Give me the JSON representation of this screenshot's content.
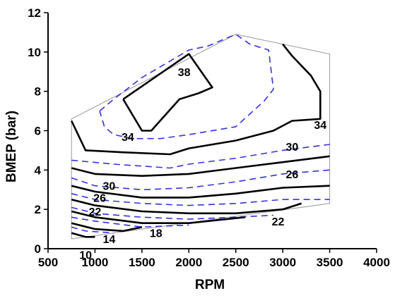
{
  "chart_data": {
    "type": "line",
    "subtype": "contour",
    "title": "",
    "xlabel": "RPM",
    "ylabel": "BMEP (bar)",
    "xlim": [
      500,
      4000
    ],
    "ylim": [
      0,
      12
    ],
    "xticks": [
      500,
      1000,
      1500,
      2000,
      2500,
      3000,
      3500,
      4000
    ],
    "yticks": [
      0,
      2,
      4,
      6,
      8,
      10,
      12
    ],
    "grid": false,
    "legend": "none",
    "colors": {
      "solid": "#000000",
      "dashed": "#3333dd",
      "boundary": "#999999"
    },
    "boundary": [
      [
        750,
        6.6
      ],
      [
        2500,
        10.9
      ],
      [
        3500,
        9.9
      ],
      [
        3500,
        2.3
      ],
      [
        750,
        0.5
      ],
      [
        750,
        6.6
      ]
    ],
    "contours": [
      {
        "label": "38",
        "style": "solid",
        "closed": true,
        "points": [
          [
            1300,
            7.6
          ],
          [
            2000,
            9.9
          ],
          [
            2250,
            8.2
          ],
          [
            2100,
            7.9
          ],
          [
            1900,
            7.6
          ],
          [
            1600,
            6.0
          ],
          [
            1500,
            6.0
          ],
          [
            1300,
            7.6
          ]
        ]
      },
      {
        "label": "",
        "style": "dashed",
        "closed": true,
        "points": [
          [
            1050,
            7.0
          ],
          [
            1200,
            7.6
          ],
          [
            1500,
            8.7
          ],
          [
            2000,
            10.1
          ],
          [
            2200,
            10.3
          ],
          [
            2500,
            10.9
          ],
          [
            2650,
            10.4
          ],
          [
            2850,
            10.1
          ],
          [
            2900,
            8.1
          ],
          [
            2800,
            7.5
          ],
          [
            2500,
            6.2
          ],
          [
            2000,
            5.8
          ],
          [
            1700,
            5.6
          ],
          [
            1400,
            5.6
          ],
          [
            1200,
            5.8
          ],
          [
            1100,
            6.2
          ],
          [
            1050,
            7.0
          ]
        ]
      },
      {
        "label": "34",
        "style": "solid",
        "closed": false,
        "points": [
          [
            750,
            6.5
          ],
          [
            900,
            5.0
          ],
          [
            1300,
            4.9
          ],
          [
            1800,
            4.8
          ],
          [
            2000,
            5.1
          ],
          [
            2500,
            5.5
          ],
          [
            2900,
            6.0
          ],
          [
            3100,
            6.5
          ],
          [
            3400,
            6.6
          ],
          [
            3400,
            7.6
          ],
          [
            3400,
            8.0
          ],
          [
            3300,
            8.8
          ],
          [
            3100,
            9.8
          ],
          [
            3000,
            10.4
          ]
        ]
      },
      {
        "label": "",
        "style": "dashed",
        "closed": false,
        "points": [
          [
            750,
            4.5
          ],
          [
            1200,
            4.3
          ],
          [
            1800,
            4.1
          ],
          [
            2000,
            4.3
          ],
          [
            2500,
            4.6
          ],
          [
            3000,
            5.0
          ],
          [
            3500,
            5.3
          ]
        ]
      },
      {
        "label": "30",
        "style": "solid",
        "closed": false,
        "points": [
          [
            750,
            4.1
          ],
          [
            1000,
            3.8
          ],
          [
            1500,
            3.7
          ],
          [
            2000,
            3.8
          ],
          [
            2500,
            4.1
          ],
          [
            3000,
            4.4
          ],
          [
            3500,
            4.7
          ]
        ]
      },
      {
        "label": "",
        "style": "dashed",
        "closed": false,
        "points": [
          [
            750,
            3.6
          ],
          [
            1000,
            3.2
          ],
          [
            1500,
            3.0
          ],
          [
            2000,
            3.1
          ],
          [
            2500,
            3.4
          ],
          [
            3000,
            3.8
          ],
          [
            3500,
            4.0
          ]
        ]
      },
      {
        "label": "26",
        "style": "solid",
        "closed": false,
        "points": [
          [
            750,
            3.2
          ],
          [
            1000,
            2.9
          ],
          [
            1500,
            2.6
          ],
          [
            2000,
            2.6
          ],
          [
            2500,
            2.8
          ],
          [
            3000,
            3.1
          ],
          [
            3500,
            3.2
          ]
        ]
      },
      {
        "label": "",
        "style": "dashed",
        "closed": false,
        "points": [
          [
            750,
            2.8
          ],
          [
            1000,
            2.5
          ],
          [
            1500,
            2.3
          ],
          [
            2000,
            2.2
          ],
          [
            2500,
            2.3
          ],
          [
            3000,
            2.5
          ],
          [
            3500,
            2.5
          ]
        ]
      },
      {
        "label": "22",
        "style": "solid",
        "closed": false,
        "points": [
          [
            750,
            2.5
          ],
          [
            1000,
            2.2
          ],
          [
            1500,
            1.9
          ],
          [
            2000,
            1.8
          ],
          [
            2500,
            1.8
          ],
          [
            3000,
            2.0
          ],
          [
            3200,
            2.3
          ]
        ]
      },
      {
        "label": "",
        "style": "dashed",
        "closed": false,
        "points": [
          [
            750,
            2.1
          ],
          [
            1000,
            1.8
          ],
          [
            1500,
            1.6
          ],
          [
            2000,
            1.5
          ],
          [
            2500,
            1.6
          ],
          [
            2900,
            1.7
          ]
        ]
      },
      {
        "label": "18",
        "style": "solid",
        "closed": false,
        "points": [
          [
            750,
            1.9
          ],
          [
            1000,
            1.6
          ],
          [
            1500,
            1.3
          ],
          [
            2000,
            1.3
          ],
          [
            2400,
            1.5
          ],
          [
            2600,
            1.6
          ]
        ]
      },
      {
        "label": "",
        "style": "dashed",
        "closed": false,
        "points": [
          [
            750,
            1.6
          ],
          [
            1000,
            1.4
          ],
          [
            1500,
            1.1
          ],
          [
            2000,
            1.2
          ]
        ]
      },
      {
        "label": "14",
        "style": "solid",
        "closed": false,
        "points": [
          [
            750,
            1.3
          ],
          [
            1000,
            1.0
          ],
          [
            1300,
            0.9
          ],
          [
            1500,
            1.1
          ]
        ]
      },
      {
        "label": "",
        "style": "dashed",
        "closed": false,
        "points": [
          [
            750,
            1.1
          ],
          [
            900,
            0.9
          ],
          [
            1200,
            0.8
          ]
        ]
      },
      {
        "label": "10",
        "style": "solid",
        "closed": false,
        "points": [
          [
            750,
            0.8
          ],
          [
            900,
            0.6
          ],
          [
            1000,
            0.6
          ]
        ]
      }
    ],
    "label_positions": [
      {
        "text": "38",
        "at": [
          1950,
          9.0
        ]
      },
      {
        "text": "34",
        "at": [
          1350,
          5.7
        ]
      },
      {
        "text": "34",
        "at": [
          3400,
          6.3
        ]
      },
      {
        "text": "30",
        "at": [
          1150,
          3.2
        ]
      },
      {
        "text": "30",
        "at": [
          3100,
          5.2
        ]
      },
      {
        "text": "26",
        "at": [
          1050,
          2.6
        ]
      },
      {
        "text": "26",
        "at": [
          3100,
          3.8
        ]
      },
      {
        "text": "22",
        "at": [
          1000,
          1.9
        ]
      },
      {
        "text": "22",
        "at": [
          2950,
          1.4
        ]
      },
      {
        "text": "18",
        "at": [
          1650,
          0.8
        ]
      },
      {
        "text": "14",
        "at": [
          1150,
          0.5
        ]
      },
      {
        "text": "10",
        "at": [
          900,
          -0.3
        ]
      }
    ]
  }
}
